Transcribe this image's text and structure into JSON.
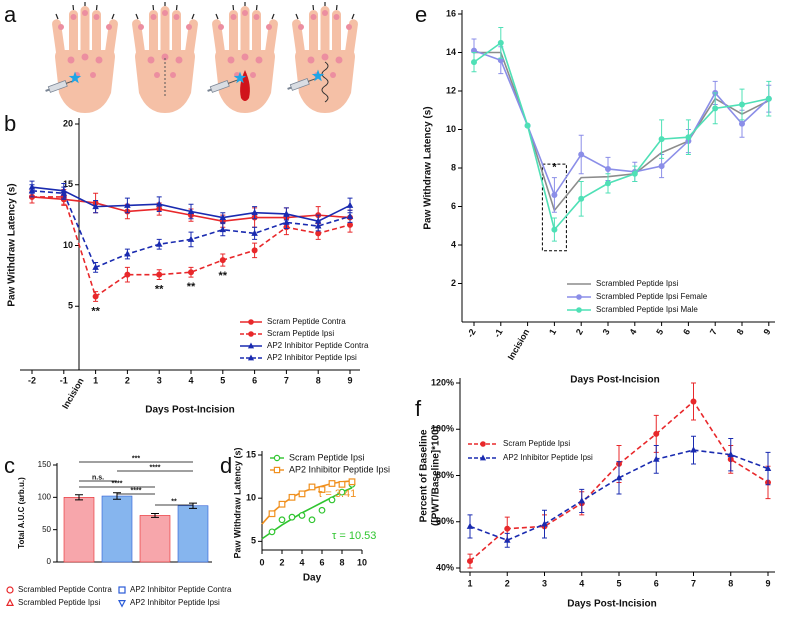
{
  "panel_labels": [
    "a",
    "b",
    "c",
    "d",
    "e",
    "f"
  ],
  "chart_data": [
    {
      "type": "line",
      "ylabel": "Paw Withdraw Latency (s)",
      "xlabel": "Days Post-Incision",
      "incision_label": "Incision",
      "categories": [
        "-2",
        "-1",
        "1",
        "2",
        "3",
        "4",
        "5",
        "6",
        "7",
        "8",
        "9"
      ],
      "ylim": [
        0,
        20
      ],
      "yticks": [
        5,
        10,
        15,
        20
      ],
      "legend": "lower right",
      "series": [
        {
          "name": "Scram Peptide Contra",
          "color": "#e8282b",
          "dash": false,
          "marker": "circle",
          "values": [
            14.0,
            13.8,
            13.5,
            12.8,
            13.0,
            12.5,
            12.0,
            12.3,
            12.3,
            12.5,
            12.3
          ],
          "errors": [
            0.5,
            0.5,
            0.8,
            0.6,
            0.5,
            0.5,
            0.5,
            0.8,
            0.8,
            0.7,
            0.6
          ]
        },
        {
          "name": "Scram Peptide Ipsi",
          "color": "#e8282b",
          "dash": true,
          "marker": "circle",
          "values": [
            14.0,
            14.0,
            5.8,
            7.6,
            7.6,
            7.8,
            8.8,
            9.6,
            11.5,
            11.0,
            11.7
          ],
          "errors": [
            0.5,
            0.6,
            0.4,
            0.6,
            0.4,
            0.4,
            0.5,
            0.6,
            0.6,
            0.5,
            0.6
          ]
        },
        {
          "name": "AP2 Inhibitor Peptide Contra",
          "color": "#1a2bb0",
          "dash": false,
          "marker": "triangle",
          "values": [
            14.8,
            14.5,
            13.2,
            13.3,
            13.4,
            12.8,
            12.3,
            12.7,
            12.6,
            12.0,
            13.3
          ],
          "errors": [
            0.5,
            0.6,
            0.5,
            0.6,
            0.6,
            0.6,
            0.4,
            0.5,
            0.5,
            0.5,
            0.6
          ]
        },
        {
          "name": "AP2 Inhibitor Peptide Ipsi",
          "color": "#1a2bb0",
          "dash": true,
          "marker": "triangle",
          "values": [
            14.5,
            14.3,
            8.2,
            9.3,
            10.1,
            10.5,
            11.3,
            11.0,
            11.9,
            11.6,
            12.4
          ],
          "errors": [
            0.5,
            0.5,
            0.4,
            0.4,
            0.4,
            0.6,
            0.5,
            0.5,
            0.5,
            0.4,
            0.5
          ]
        }
      ],
      "annotations": [
        {
          "text": "**",
          "category": "1"
        },
        {
          "text": "**",
          "category": "3"
        },
        {
          "text": "**",
          "category": "4"
        },
        {
          "text": "**",
          "category": "5"
        }
      ]
    },
    {
      "type": "bar",
      "ylabel": "Total A.U.C (arb.u.)",
      "categories": [
        "Scrambled Peptide Contra",
        "AP2 Inhibitor Peptide Contra",
        "Scrambled Peptide Ipsi",
        "AP2 Inhibitor Peptide Ipsi"
      ],
      "values": [
        100,
        102,
        72,
        87
      ],
      "errors": [
        4,
        5,
        3,
        4
      ],
      "fill_colors": [
        "#f7a6ab",
        "#86b5ee",
        "#f7a6ab",
        "#86b5ee"
      ],
      "colors": [
        "#e8282b",
        "#2a5bd7",
        "#e8282b",
        "#2a5bd7"
      ],
      "markers": [
        "circle",
        "square",
        "triangle",
        "triangle-down"
      ],
      "ylim": [
        0,
        150
      ],
      "yticks": [
        0,
        50,
        100,
        150
      ],
      "comparisons": [
        "***",
        "****",
        "n.s.",
        "****",
        "****",
        "**"
      ]
    },
    {
      "type": "scatter",
      "ylabel": "Paw Withdraw Latency (s)",
      "xlabel": "Day",
      "xlim": [
        0,
        10
      ],
      "xticks": [
        0,
        2,
        4,
        6,
        8,
        10
      ],
      "ylim": [
        4,
        15
      ],
      "yticks": [
        5,
        10,
        15
      ],
      "x": [
        1,
        2,
        3,
        4,
        5,
        6,
        7,
        8,
        9
      ],
      "fit_x": [
        0,
        1,
        2,
        3,
        4,
        5,
        6,
        7,
        8,
        9
      ],
      "series": [
        {
          "name": "Scram Peptide Ipsi",
          "color": "#2fc52f",
          "marker": "circle",
          "open": true,
          "values": [
            6.1,
            7.5,
            7.8,
            8.0,
            7.5,
            8.6,
            9.8,
            10.7,
            11.6
          ],
          "fit": [
            5.3,
            6.1,
            6.9,
            7.6,
            8.3,
            8.9,
            9.5,
            10.1,
            10.7,
            11.2
          ],
          "tau_label": "τ = 10.53"
        },
        {
          "name": "AP2 Inhibitor Peptide Ipsi",
          "color": "#f0901e",
          "marker": "square",
          "open": true,
          "values": [
            8.2,
            9.3,
            10.1,
            10.5,
            11.3,
            11.0,
            11.7,
            11.6,
            11.9
          ],
          "fit": [
            7.0,
            8.3,
            9.3,
            10.1,
            10.7,
            11.1,
            11.4,
            11.7,
            11.9,
            12.0
          ],
          "tau_label": "τ = 3.41"
        }
      ]
    },
    {
      "type": "line",
      "ylabel": "Paw Withdraw Latency (s)",
      "xlabel": "Days Post-Incision",
      "categories": [
        "-2",
        "-1",
        "Incision",
        "1",
        "2",
        "3",
        "4",
        "5",
        "6",
        "7",
        "8",
        "9"
      ],
      "ylim": [
        0,
        16
      ],
      "yticks": [
        2,
        4,
        6,
        8,
        10,
        12,
        14,
        16
      ],
      "legend": "lower right",
      "series": [
        {
          "name": "Scrambled Peptide Ipsi",
          "color": "#8c8c8c",
          "dash": false,
          "values": [
            14.0,
            14.0,
            10.2,
            5.8,
            7.5,
            7.55,
            7.7,
            8.8,
            9.4,
            11.6,
            10.8,
            11.5
          ]
        },
        {
          "name": "Scrambled Peptide Ipsi Female",
          "color": "#8b8ee8",
          "dash": false,
          "marker": "circle",
          "values": [
            14.1,
            13.6,
            10.2,
            6.6,
            8.7,
            7.95,
            7.8,
            8.1,
            9.4,
            11.9,
            10.3,
            11.6
          ],
          "errors": [
            0.6,
            0.7,
            null,
            0.9,
            1.0,
            0.6,
            0.5,
            0.6,
            0.6,
            0.6,
            0.7,
            0.7
          ]
        },
        {
          "name": "Scrambled Peptide Ipsi Male",
          "color": "#4fe0b6",
          "dash": false,
          "marker": "circle",
          "values": [
            13.5,
            14.5,
            10.2,
            4.8,
            6.4,
            7.2,
            7.7,
            9.5,
            9.6,
            11.1,
            11.3,
            11.6
          ],
          "errors": [
            0.5,
            0.8,
            null,
            0.6,
            0.9,
            0.5,
            0.4,
            1.0,
            0.9,
            0.8,
            0.8,
            0.9
          ]
        }
      ],
      "annotations": [
        {
          "text": "*",
          "category": "1"
        }
      ],
      "highlight": {
        "category": "1",
        "range": [
          3.7,
          8.2
        ]
      }
    },
    {
      "type": "line",
      "ylabel": [
        "Percent of Baseline",
        "([PWT/Baseline]*100)"
      ],
      "xlabel": "Days Post-Incision",
      "categories": [
        "1",
        "2",
        "3",
        "4",
        "5",
        "6",
        "7",
        "8",
        "9"
      ],
      "ylim": [
        40,
        120
      ],
      "yticks": [
        {
          "value": 40,
          "label": "40%"
        },
        {
          "value": 60,
          "label": "60%"
        },
        {
          "value": 80,
          "label": "80%"
        },
        {
          "value": 100,
          "label": "100%"
        },
        {
          "value": 120,
          "label": "120%"
        }
      ],
      "legend": "upper left",
      "series": [
        {
          "name": "Scram Peptide Ipsi",
          "color": "#e8282b",
          "dash": true,
          "marker": "circle",
          "values": [
            43,
            57,
            58,
            68,
            85,
            98,
            112,
            87,
            77
          ],
          "errors": [
            3,
            5,
            5,
            5,
            8,
            8,
            8,
            6,
            7
          ]
        },
        {
          "name": "AP2 Inhibitor Peptide Ipsi",
          "color": "#1a2bb0",
          "dash": true,
          "marker": "triangle",
          "values": [
            58,
            52,
            59,
            69,
            79,
            87,
            91,
            89,
            83
          ],
          "errors": [
            5,
            3,
            6,
            5,
            7,
            6,
            6,
            7,
            7
          ]
        }
      ]
    }
  ]
}
